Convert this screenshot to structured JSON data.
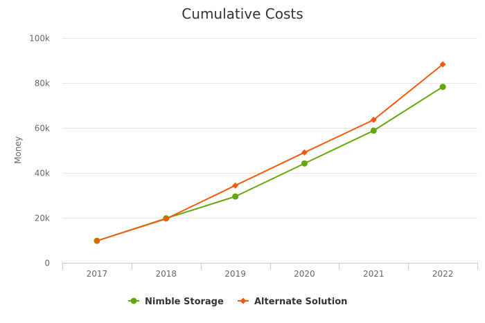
{
  "chart_data": {
    "type": "line",
    "title": "Cumulative Costs",
    "xlabel": "",
    "ylabel": "Money",
    "categories": [
      "2017",
      "2018",
      "2019",
      "2020",
      "2021",
      "2022"
    ],
    "ylim": [
      0,
      100000
    ],
    "y_ticks": [
      {
        "value": 0,
        "label": "0"
      },
      {
        "value": 20000,
        "label": "20k"
      },
      {
        "value": 40000,
        "label": "40k"
      },
      {
        "value": 60000,
        "label": "60k"
      },
      {
        "value": 80000,
        "label": "80k"
      },
      {
        "value": 100000,
        "label": "100k"
      }
    ],
    "grid": true,
    "legend_position": "bottom-center",
    "series": [
      {
        "name": "Nimble Storage",
        "color": "#64a70b",
        "marker": "circle",
        "values": [
          9800,
          19800,
          29500,
          44200,
          58800,
          78300
        ]
      },
      {
        "name": "Alternate Solution",
        "color": "#f45a0a",
        "marker": "diamond",
        "values": [
          9800,
          19600,
          34400,
          49100,
          63600,
          88300
        ]
      }
    ]
  }
}
